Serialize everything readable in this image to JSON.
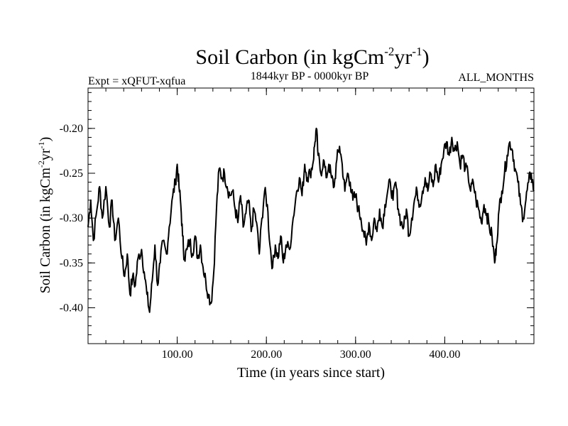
{
  "chart_data": {
    "type": "line",
    "title": {
      "base": "Soil Carbon (in kgCm",
      "sup1": "-2",
      "mid": "yr",
      "sup2": "-1",
      "end": ")"
    },
    "subtitle_left": "Expt = xQFUT-xqfua",
    "subtitle_center": "1844kyr BP - 0000kyr BP",
    "subtitle_right": "ALL_MONTHS",
    "xlabel": "Time (in years since start)",
    "ylabel": {
      "base": "Soil Carbon (in kgCm",
      "sup1": "-2",
      "mid": "yr",
      "sup2": "-1",
      "end": ")"
    },
    "xlim": [
      0,
      500
    ],
    "ylim": [
      -0.44,
      -0.155
    ],
    "xticks": [
      {
        "value": 100,
        "label": "100.00"
      },
      {
        "value": 200,
        "label": "200.00"
      },
      {
        "value": 300,
        "label": "300.00"
      },
      {
        "value": 400,
        "label": "400.00"
      }
    ],
    "yticks": [
      {
        "value": -0.2,
        "label": "-0.20"
      },
      {
        "value": -0.25,
        "label": "-0.25"
      },
      {
        "value": -0.3,
        "label": "-0.30"
      },
      {
        "value": -0.35,
        "label": "-0.35"
      },
      {
        "value": -0.4,
        "label": "-0.40"
      }
    ],
    "x_minor_step": 20,
    "y_minor_step": 0.01,
    "grid": false,
    "series": [
      {
        "name": "Soil Carbon",
        "color": "#000000",
        "points": [
          [
            0,
            -0.31
          ],
          [
            3,
            -0.28
          ],
          [
            6,
            -0.325
          ],
          [
            10,
            -0.29
          ],
          [
            13,
            -0.265
          ],
          [
            16,
            -0.3
          ],
          [
            20,
            -0.265
          ],
          [
            24,
            -0.31
          ],
          [
            27,
            -0.28
          ],
          [
            30,
            -0.325
          ],
          [
            34,
            -0.3
          ],
          [
            38,
            -0.345
          ],
          [
            41,
            -0.365
          ],
          [
            44,
            -0.34
          ],
          [
            47,
            -0.385
          ],
          [
            50,
            -0.365
          ],
          [
            53,
            -0.375
          ],
          [
            56,
            -0.345
          ],
          [
            60,
            -0.335
          ],
          [
            63,
            -0.36
          ],
          [
            66,
            -0.385
          ],
          [
            69,
            -0.405
          ],
          [
            72,
            -0.37
          ],
          [
            75,
            -0.33
          ],
          [
            78,
            -0.375
          ],
          [
            81,
            -0.35
          ],
          [
            84,
            -0.325
          ],
          [
            88,
            -0.34
          ],
          [
            91,
            -0.31
          ],
          [
            95,
            -0.275
          ],
          [
            98,
            -0.26
          ],
          [
            100,
            -0.24
          ],
          [
            102,
            -0.265
          ],
          [
            104,
            -0.285
          ],
          [
            106,
            -0.32
          ],
          [
            108,
            -0.345
          ],
          [
            111,
            -0.335
          ],
          [
            114,
            -0.325
          ],
          [
            117,
            -0.34
          ],
          [
            120,
            -0.32
          ],
          [
            123,
            -0.345
          ],
          [
            126,
            -0.33
          ],
          [
            129,
            -0.355
          ],
          [
            132,
            -0.37
          ],
          [
            135,
            -0.385
          ],
          [
            138,
            -0.395
          ],
          [
            141,
            -0.36
          ],
          [
            144,
            -0.29
          ],
          [
            147,
            -0.245
          ],
          [
            150,
            -0.255
          ],
          [
            153,
            -0.25
          ],
          [
            156,
            -0.265
          ],
          [
            159,
            -0.275
          ],
          [
            162,
            -0.27
          ],
          [
            165,
            -0.29
          ],
          [
            168,
            -0.305
          ],
          [
            171,
            -0.275
          ],
          [
            174,
            -0.31
          ],
          [
            177,
            -0.295
          ],
          [
            180,
            -0.28
          ],
          [
            183,
            -0.315
          ],
          [
            186,
            -0.29
          ],
          [
            189,
            -0.305
          ],
          [
            192,
            -0.34
          ],
          [
            195,
            -0.3
          ],
          [
            198,
            -0.27
          ],
          [
            201,
            -0.285
          ],
          [
            204,
            -0.33
          ],
          [
            207,
            -0.355
          ],
          [
            210,
            -0.33
          ],
          [
            213,
            -0.345
          ],
          [
            216,
            -0.32
          ],
          [
            219,
            -0.35
          ],
          [
            222,
            -0.33
          ],
          [
            226,
            -0.335
          ],
          [
            230,
            -0.3
          ],
          [
            234,
            -0.27
          ],
          [
            237,
            -0.255
          ],
          [
            240,
            -0.275
          ],
          [
            243,
            -0.24
          ],
          [
            246,
            -0.255
          ],
          [
            249,
            -0.25
          ],
          [
            252,
            -0.24
          ],
          [
            254,
            -0.22
          ],
          [
            256,
            -0.2
          ],
          [
            258,
            -0.23
          ],
          [
            261,
            -0.25
          ],
          [
            264,
            -0.235
          ],
          [
            267,
            -0.255
          ],
          [
            270,
            -0.24
          ],
          [
            273,
            -0.255
          ],
          [
            276,
            -0.265
          ],
          [
            279,
            -0.235
          ],
          [
            282,
            -0.22
          ],
          [
            285,
            -0.24
          ],
          [
            288,
            -0.27
          ],
          [
            291,
            -0.25
          ],
          [
            294,
            -0.26
          ],
          [
            297,
            -0.28
          ],
          [
            300,
            -0.275
          ],
          [
            303,
            -0.29
          ],
          [
            306,
            -0.3
          ],
          [
            309,
            -0.315
          ],
          [
            312,
            -0.33
          ],
          [
            315,
            -0.305
          ],
          [
            318,
            -0.325
          ],
          [
            321,
            -0.3
          ],
          [
            324,
            -0.315
          ],
          [
            327,
            -0.29
          ],
          [
            330,
            -0.31
          ],
          [
            333,
            -0.285
          ],
          [
            336,
            -0.27
          ],
          [
            339,
            -0.26
          ],
          [
            342,
            -0.28
          ],
          [
            345,
            -0.26
          ],
          [
            348,
            -0.29
          ],
          [
            351,
            -0.305
          ],
          [
            354,
            -0.31
          ],
          [
            357,
            -0.29
          ],
          [
            360,
            -0.32
          ],
          [
            363,
            -0.3
          ],
          [
            366,
            -0.28
          ],
          [
            369,
            -0.27
          ],
          [
            372,
            -0.285
          ],
          [
            375,
            -0.27
          ],
          [
            378,
            -0.255
          ],
          [
            381,
            -0.27
          ],
          [
            384,
            -0.25
          ],
          [
            387,
            -0.265
          ],
          [
            390,
            -0.24
          ],
          [
            393,
            -0.26
          ],
          [
            396,
            -0.24
          ],
          [
            399,
            -0.225
          ],
          [
            402,
            -0.215
          ],
          [
            405,
            -0.23
          ],
          [
            408,
            -0.21
          ],
          [
            411,
            -0.225
          ],
          [
            414,
            -0.215
          ],
          [
            417,
            -0.24
          ],
          [
            420,
            -0.23
          ],
          [
            423,
            -0.245
          ],
          [
            426,
            -0.25
          ],
          [
            429,
            -0.27
          ],
          [
            432,
            -0.26
          ],
          [
            435,
            -0.28
          ],
          [
            438,
            -0.29
          ],
          [
            441,
            -0.305
          ],
          [
            444,
            -0.285
          ],
          [
            447,
            -0.295
          ],
          [
            450,
            -0.31
          ],
          [
            453,
            -0.32
          ],
          [
            456,
            -0.35
          ],
          [
            458,
            -0.33
          ],
          [
            461,
            -0.29
          ],
          [
            464,
            -0.27
          ],
          [
            467,
            -0.25
          ],
          [
            470,
            -0.23
          ],
          [
            473,
            -0.215
          ],
          [
            476,
            -0.225
          ],
          [
            479,
            -0.245
          ],
          [
            482,
            -0.26
          ],
          [
            485,
            -0.285
          ],
          [
            488,
            -0.3
          ],
          [
            491,
            -0.28
          ],
          [
            494,
            -0.26
          ],
          [
            497,
            -0.25
          ],
          [
            500,
            -0.27
          ]
        ]
      }
    ]
  }
}
